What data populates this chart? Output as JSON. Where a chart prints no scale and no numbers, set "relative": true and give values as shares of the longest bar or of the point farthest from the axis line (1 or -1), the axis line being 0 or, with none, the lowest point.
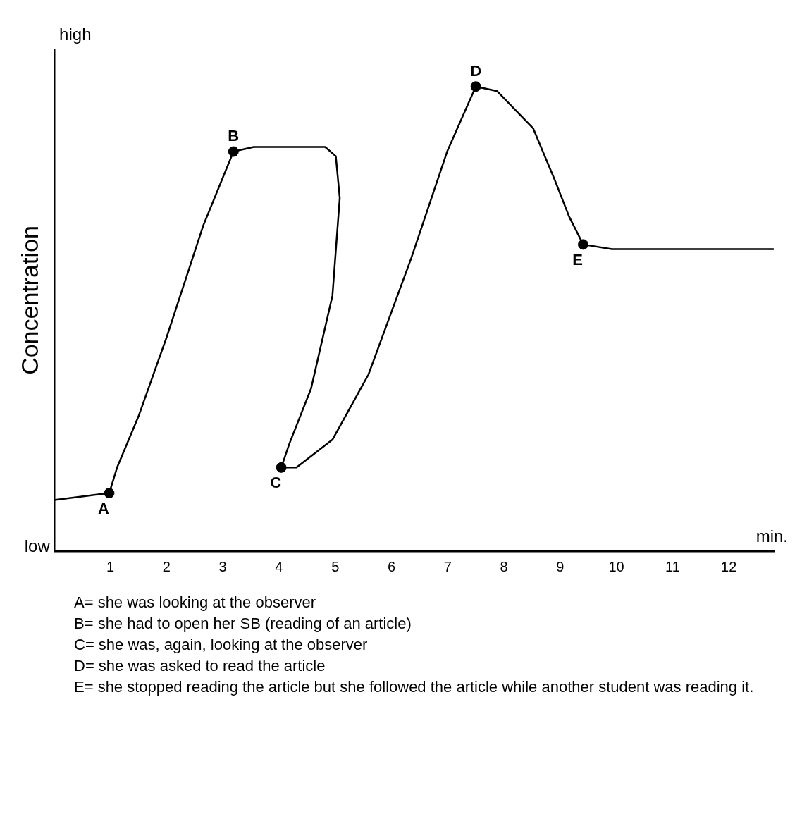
{
  "chart_data": {
    "type": "line",
    "relative": true,
    "ylabel": "Concentration",
    "xlabel": "min.",
    "xlim": [
      0,
      12.8
    ],
    "xticks": [
      1,
      2,
      3,
      4,
      5,
      6,
      7,
      8,
      9,
      10,
      11,
      12
    ],
    "tick_labels": "x",
    "grid": false,
    "legend": false,
    "series": [
      {
        "color": "#000000",
        "marker": "none",
        "line_style": "solid",
        "x": [
          0,
          0.98,
          1.12,
          1.5,
          2.0,
          2.65,
          3.19,
          3.55,
          4.82,
          5.01,
          5.08,
          4.95,
          4.57,
          4.18,
          4.04,
          4.31,
          4.95,
          5.59,
          6.35,
          6.99,
          7.5,
          7.88,
          8.52,
          8.9,
          9.16,
          9.41,
          9.92,
          11.2,
          12.79
        ],
        "values": [
          0.11,
          0.125,
          0.18,
          0.29,
          0.46,
          0.7,
          0.86,
          0.87,
          0.87,
          0.85,
          0.76,
          0.55,
          0.35,
          0.23,
          0.18,
          0.18,
          0.24,
          0.38,
          0.63,
          0.86,
          1.0,
          0.99,
          0.91,
          0.8,
          0.72,
          0.66,
          0.65,
          0.65,
          0.65
        ]
      },
      {
        "type": "scatter",
        "color": "#000000",
        "marker": "circle",
        "x": [
          0.98,
          3.19,
          4.04,
          7.5,
          9.41
        ],
        "values": [
          0.125,
          0.86,
          0.18,
          1.0,
          0.66
        ]
      }
    ],
    "annotations": [
      "high",
      "low",
      {
        "text": "A",
        "x": 0.98,
        "y": 0.125
      },
      {
        "text": "B",
        "x": 3.19,
        "y": 0.86
      },
      {
        "text": "C",
        "x": 4.04,
        "y": 0.18
      },
      {
        "text": "D",
        "x": 7.5,
        "y": 1.0
      },
      {
        "text": "E",
        "x": 9.41,
        "y": 0.66
      },
      "A= she was looking at the observer",
      "B= she had to open her SB (reading of an article)",
      "C= she was, again, looking at the observer",
      "D= she was asked to read the article",
      "E= she stopped reading the article but she followed the article while another student was reading it."
    ]
  }
}
